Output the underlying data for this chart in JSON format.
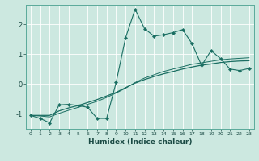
{
  "xlabel": "Humidex (Indice chaleur)",
  "bg_color": "#cce8e0",
  "grid_color": "#aad4cc",
  "line_color": "#1a6e62",
  "xlim": [
    -0.5,
    23.5
  ],
  "ylim": [
    -1.5,
    2.65
  ],
  "yticks": [
    -1,
    0,
    1,
    2
  ],
  "xticks": [
    0,
    1,
    2,
    3,
    4,
    5,
    6,
    7,
    8,
    9,
    10,
    11,
    12,
    13,
    14,
    15,
    16,
    17,
    18,
    19,
    20,
    21,
    22,
    23
  ],
  "series1_x": [
    0,
    1,
    2,
    3,
    4,
    5,
    6,
    7,
    8,
    9,
    10,
    11,
    12,
    13,
    14,
    15,
    16,
    17,
    18,
    19,
    20,
    21,
    22,
    23
  ],
  "series1_y": [
    -1.05,
    -1.15,
    -1.3,
    -0.7,
    -0.68,
    -0.72,
    -0.78,
    -1.15,
    -1.15,
    0.05,
    1.55,
    2.5,
    1.85,
    1.6,
    1.65,
    1.72,
    1.82,
    1.35,
    0.62,
    1.12,
    0.85,
    0.5,
    0.45,
    0.52
  ],
  "series2_x": [
    0,
    1,
    2,
    3,
    4,
    5,
    6,
    7,
    8,
    9,
    10,
    11,
    12,
    13,
    14,
    15,
    16,
    17,
    18,
    19,
    20,
    21,
    22,
    23
  ],
  "series2_y": [
    -1.05,
    -1.05,
    -1.05,
    -0.9,
    -0.8,
    -0.72,
    -0.62,
    -0.52,
    -0.4,
    -0.28,
    -0.12,
    0.03,
    0.15,
    0.25,
    0.34,
    0.42,
    0.5,
    0.57,
    0.63,
    0.67,
    0.72,
    0.75,
    0.77,
    0.78
  ],
  "series3_x": [
    0,
    1,
    2,
    3,
    4,
    5,
    6,
    7,
    8,
    9,
    10,
    11,
    12,
    13,
    14,
    15,
    16,
    17,
    18,
    19,
    20,
    21,
    22,
    23
  ],
  "series3_y": [
    -1.05,
    -1.07,
    -1.1,
    -0.98,
    -0.88,
    -0.78,
    -0.68,
    -0.58,
    -0.45,
    -0.3,
    -0.14,
    0.05,
    0.2,
    0.31,
    0.42,
    0.5,
    0.58,
    0.66,
    0.71,
    0.76,
    0.81,
    0.84,
    0.86,
    0.88
  ]
}
